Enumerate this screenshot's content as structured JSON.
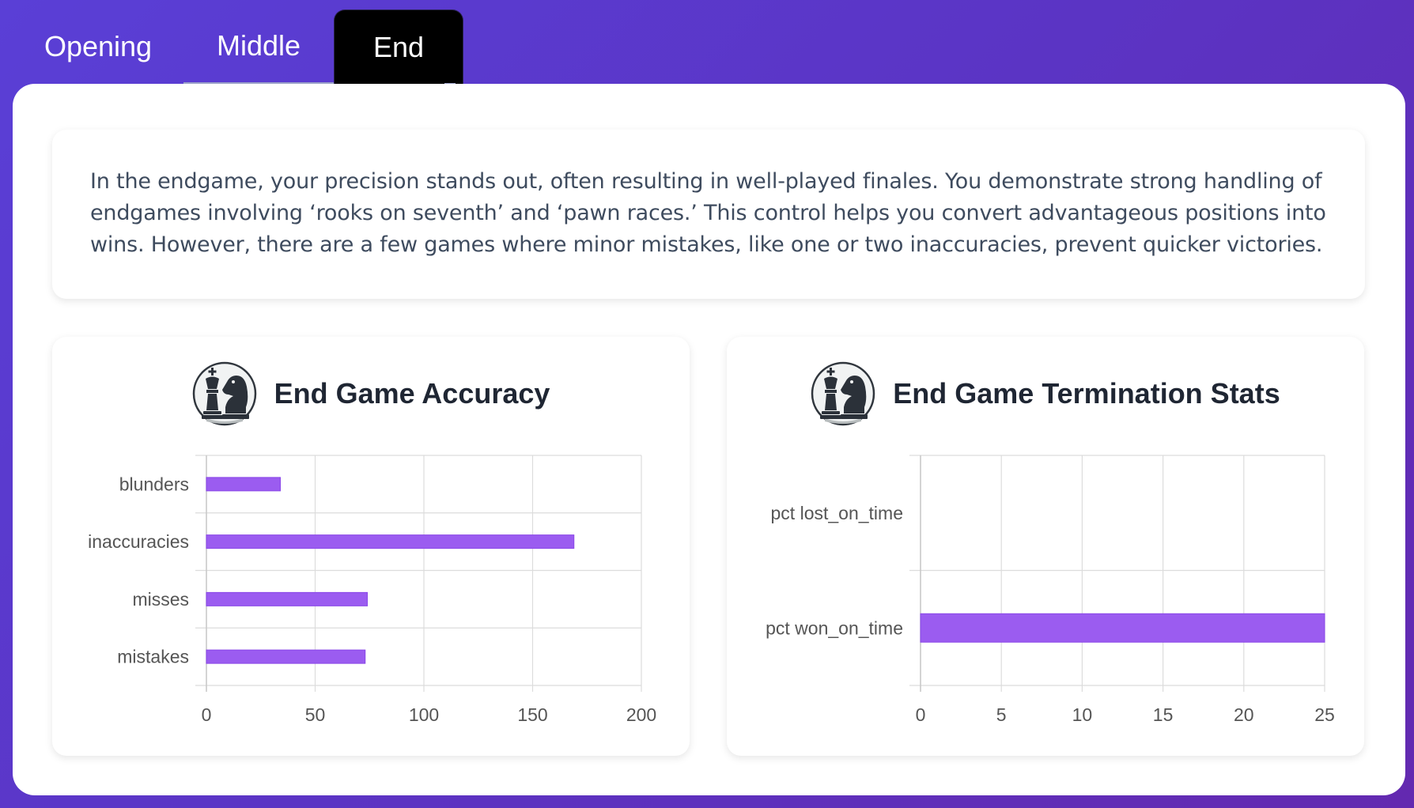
{
  "tabs": [
    {
      "label": "Opening"
    },
    {
      "label": "Middle"
    },
    {
      "label": "End"
    }
  ],
  "active_tab": "End",
  "description": "In the endgame, your precision stands out, often resulting in well-played finales. You demonstrate strong handling of endgames involving ‘rooks on seventh’ and ‘pawn races.’ This control helps you convert advantageous positions into wins. However, there are a few games where minor mistakes, like one or two inaccuracies, prevent quicker victories.",
  "colors": {
    "bar": "#9b5cf0",
    "bar_border": "#8a47e8",
    "background_start": "#5a3fd6",
    "background_end": "#6329b0",
    "active_tab": "#000000"
  },
  "icons": {
    "card_icon": "chess-king-knight-icon"
  },
  "chart_data": [
    {
      "type": "bar",
      "orientation": "horizontal",
      "title": "End Game Accuracy",
      "categories": [
        "blunders",
        "inaccuracies",
        "misses",
        "mistakes"
      ],
      "values": [
        34,
        169,
        74,
        73
      ],
      "xlim": [
        0,
        200
      ],
      "xticks": [
        "0",
        "50",
        "100",
        "150",
        "200"
      ],
      "grid": true
    },
    {
      "type": "bar",
      "orientation": "horizontal",
      "title": "End Game Termination Stats",
      "categories": [
        "pct lost_on_time",
        "pct won_on_time"
      ],
      "values": [
        0,
        25
      ],
      "xlim": [
        0,
        25
      ],
      "xticks": [
        "0",
        "5",
        "10",
        "15",
        "20",
        "25"
      ],
      "grid": true
    }
  ]
}
